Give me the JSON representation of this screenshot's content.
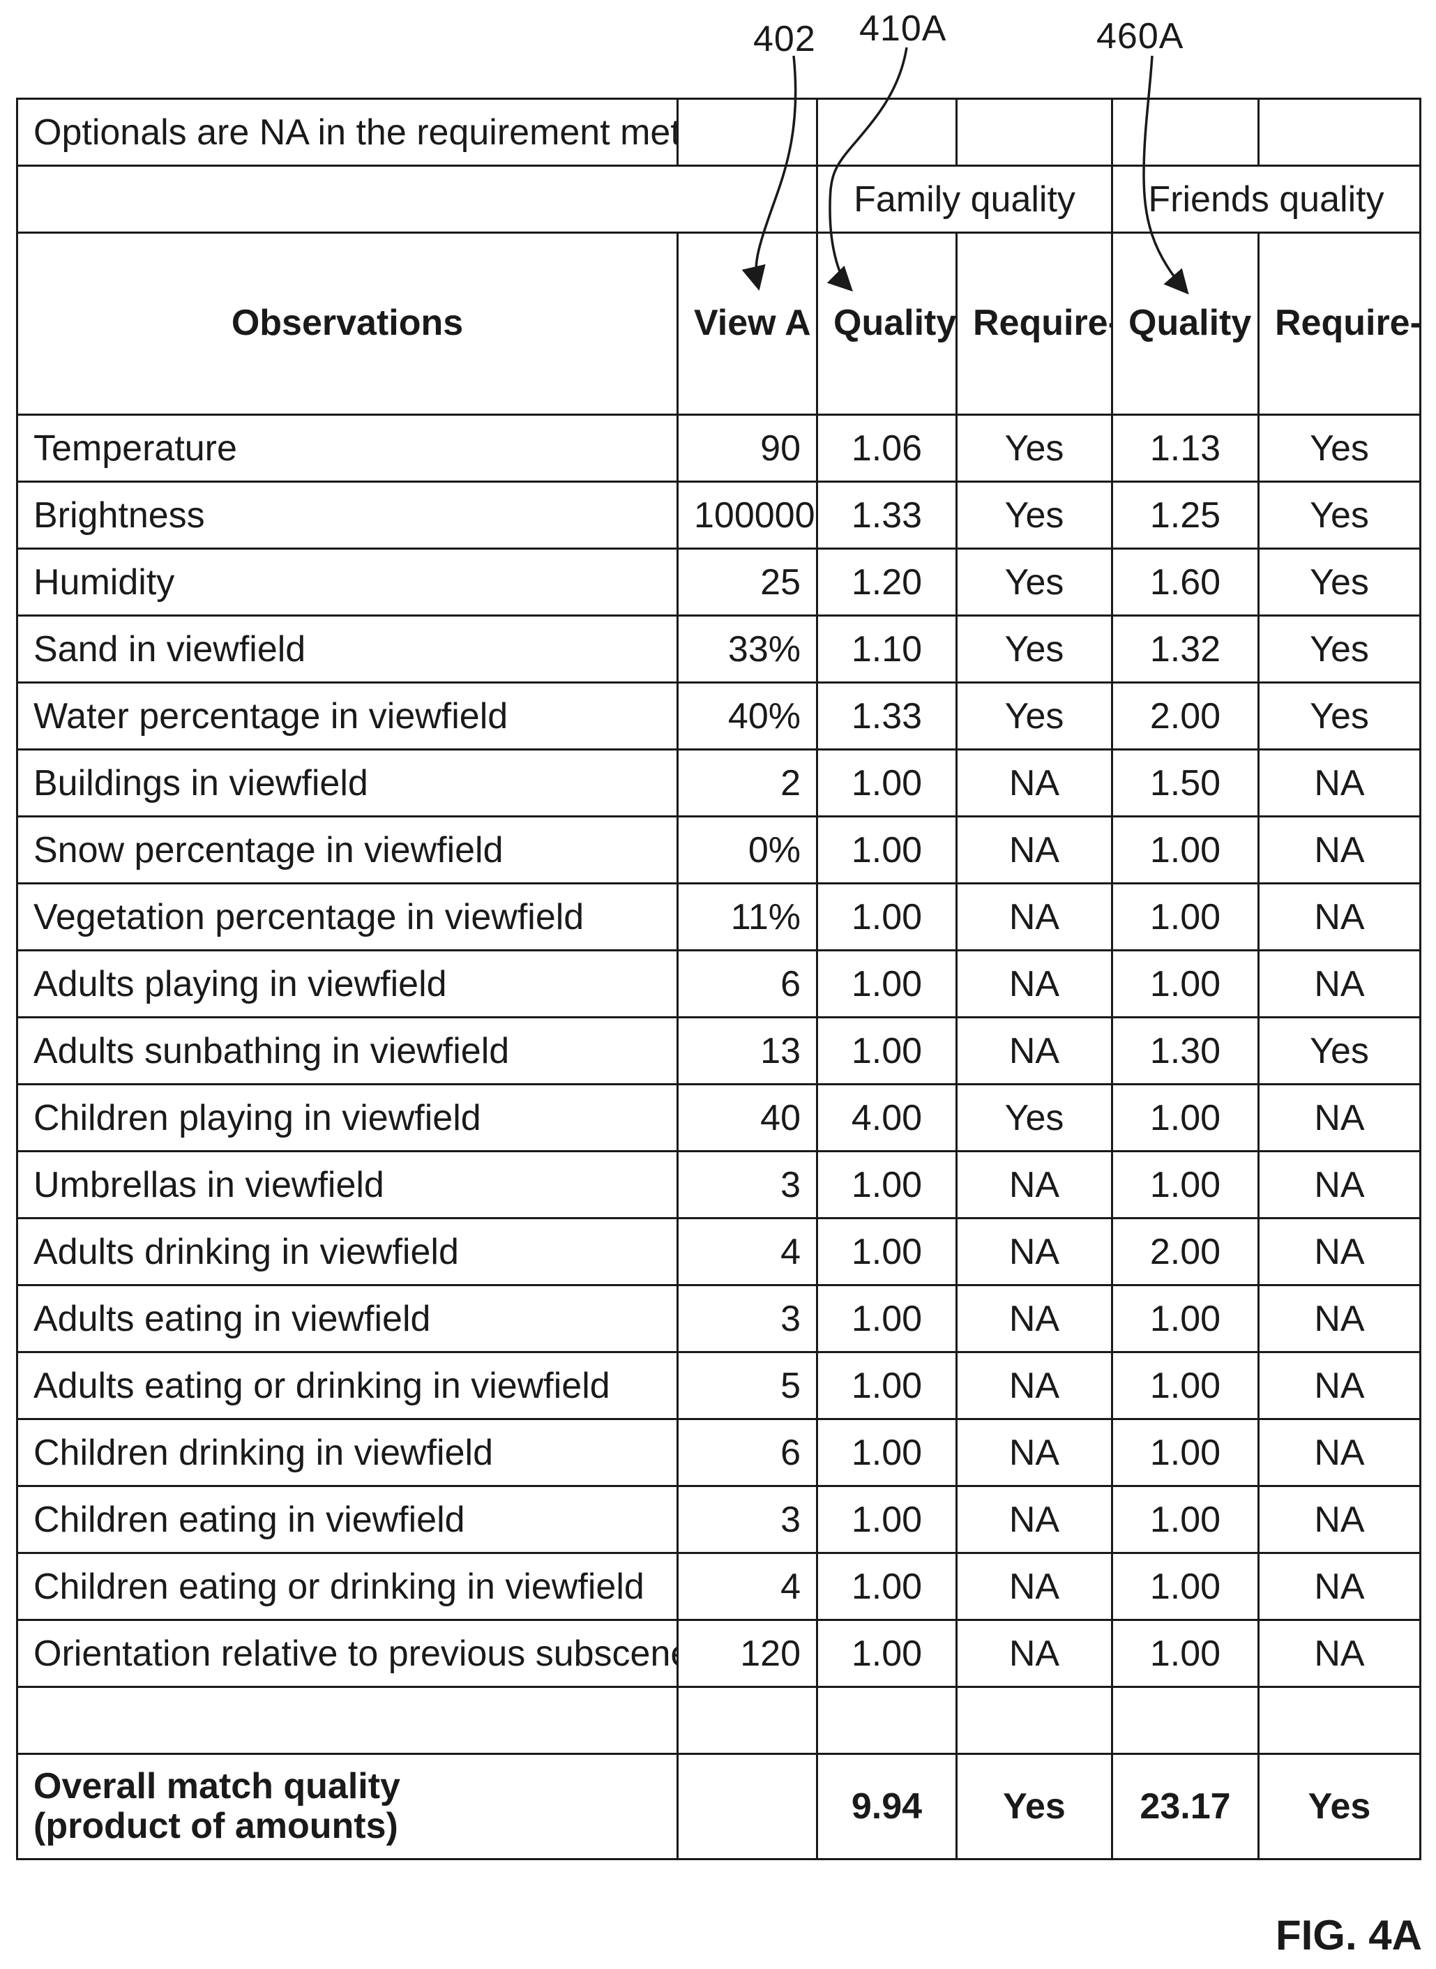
{
  "callouts": {
    "c402": "402",
    "c410a": "410A",
    "c460a": "460A"
  },
  "figure_label": "FIG. 4A",
  "note": "Optionals are NA in the requirement met column",
  "groups": {
    "family": "Family quality",
    "friends": "Friends quality"
  },
  "headers": {
    "observations": "Observations",
    "view_a": "View A",
    "family_quality": "Quality",
    "family_req": "Require-ment met?",
    "friends_quality": "Quality",
    "friends_req": "Require-ment met?"
  },
  "rows": [
    {
      "obs": "Temperature",
      "view": "90",
      "fq": "1.06",
      "freq": "Yes",
      "frq": "1.13",
      "frreq": "Yes"
    },
    {
      "obs": "Brightness",
      "view": "100000",
      "fq": "1.33",
      "freq": "Yes",
      "frq": "1.25",
      "frreq": "Yes"
    },
    {
      "obs": "Humidity",
      "view": "25",
      "fq": "1.20",
      "freq": "Yes",
      "frq": "1.60",
      "frreq": "Yes"
    },
    {
      "obs": "Sand in viewfield",
      "view": "33%",
      "fq": "1.10",
      "freq": "Yes",
      "frq": "1.32",
      "frreq": "Yes"
    },
    {
      "obs": "Water percentage in viewfield",
      "view": "40%",
      "fq": "1.33",
      "freq": "Yes",
      "frq": "2.00",
      "frreq": "Yes"
    },
    {
      "obs": "Buildings in viewfield",
      "view": "2",
      "fq": "1.00",
      "freq": "NA",
      "frq": "1.50",
      "frreq": "NA"
    },
    {
      "obs": "Snow percentage in viewfield",
      "view": "0%",
      "fq": "1.00",
      "freq": "NA",
      "frq": "1.00",
      "frreq": "NA"
    },
    {
      "obs": "Vegetation percentage in viewfield",
      "view": "11%",
      "fq": "1.00",
      "freq": "NA",
      "frq": "1.00",
      "frreq": "NA"
    },
    {
      "obs": "Adults playing in viewfield",
      "view": "6",
      "fq": "1.00",
      "freq": "NA",
      "frq": "1.00",
      "frreq": "NA"
    },
    {
      "obs": "Adults sunbathing in viewfield",
      "view": "13",
      "fq": "1.00",
      "freq": "NA",
      "frq": "1.30",
      "frreq": "Yes"
    },
    {
      "obs": "Children playing in viewfield",
      "view": "40",
      "fq": "4.00",
      "freq": "Yes",
      "frq": "1.00",
      "frreq": "NA"
    },
    {
      "obs": "Umbrellas in viewfield",
      "view": "3",
      "fq": "1.00",
      "freq": "NA",
      "frq": "1.00",
      "frreq": "NA"
    },
    {
      "obs": "Adults drinking in viewfield",
      "view": "4",
      "fq": "1.00",
      "freq": "NA",
      "frq": "2.00",
      "frreq": "NA"
    },
    {
      "obs": "Adults eating in viewfield",
      "view": "3",
      "fq": "1.00",
      "freq": "NA",
      "frq": "1.00",
      "frreq": "NA"
    },
    {
      "obs": "Adults eating or drinking in viewfield",
      "view": "5",
      "fq": "1.00",
      "freq": "NA",
      "frq": "1.00",
      "frreq": "NA"
    },
    {
      "obs": "Children drinking in viewfield",
      "view": "6",
      "fq": "1.00",
      "freq": "NA",
      "frq": "1.00",
      "frreq": "NA"
    },
    {
      "obs": "Children eating in viewfield",
      "view": "3",
      "fq": "1.00",
      "freq": "NA",
      "frq": "1.00",
      "frreq": "NA"
    },
    {
      "obs": "Children eating or drinking in viewfield",
      "view": "4",
      "fq": "1.00",
      "freq": "NA",
      "frq": "1.00",
      "frreq": "NA"
    },
    {
      "obs": "Orientation relative to previous subscene",
      "view": "120",
      "fq": "1.00",
      "freq": "NA",
      "frq": "1.00",
      "frreq": "NA"
    }
  ],
  "overall": {
    "label_line1": "Overall match quality",
    "label_line2": "(product of amounts)",
    "view": "",
    "fq": "9.94",
    "freq": "Yes",
    "frq": "23.17",
    "frreq": "Yes"
  }
}
